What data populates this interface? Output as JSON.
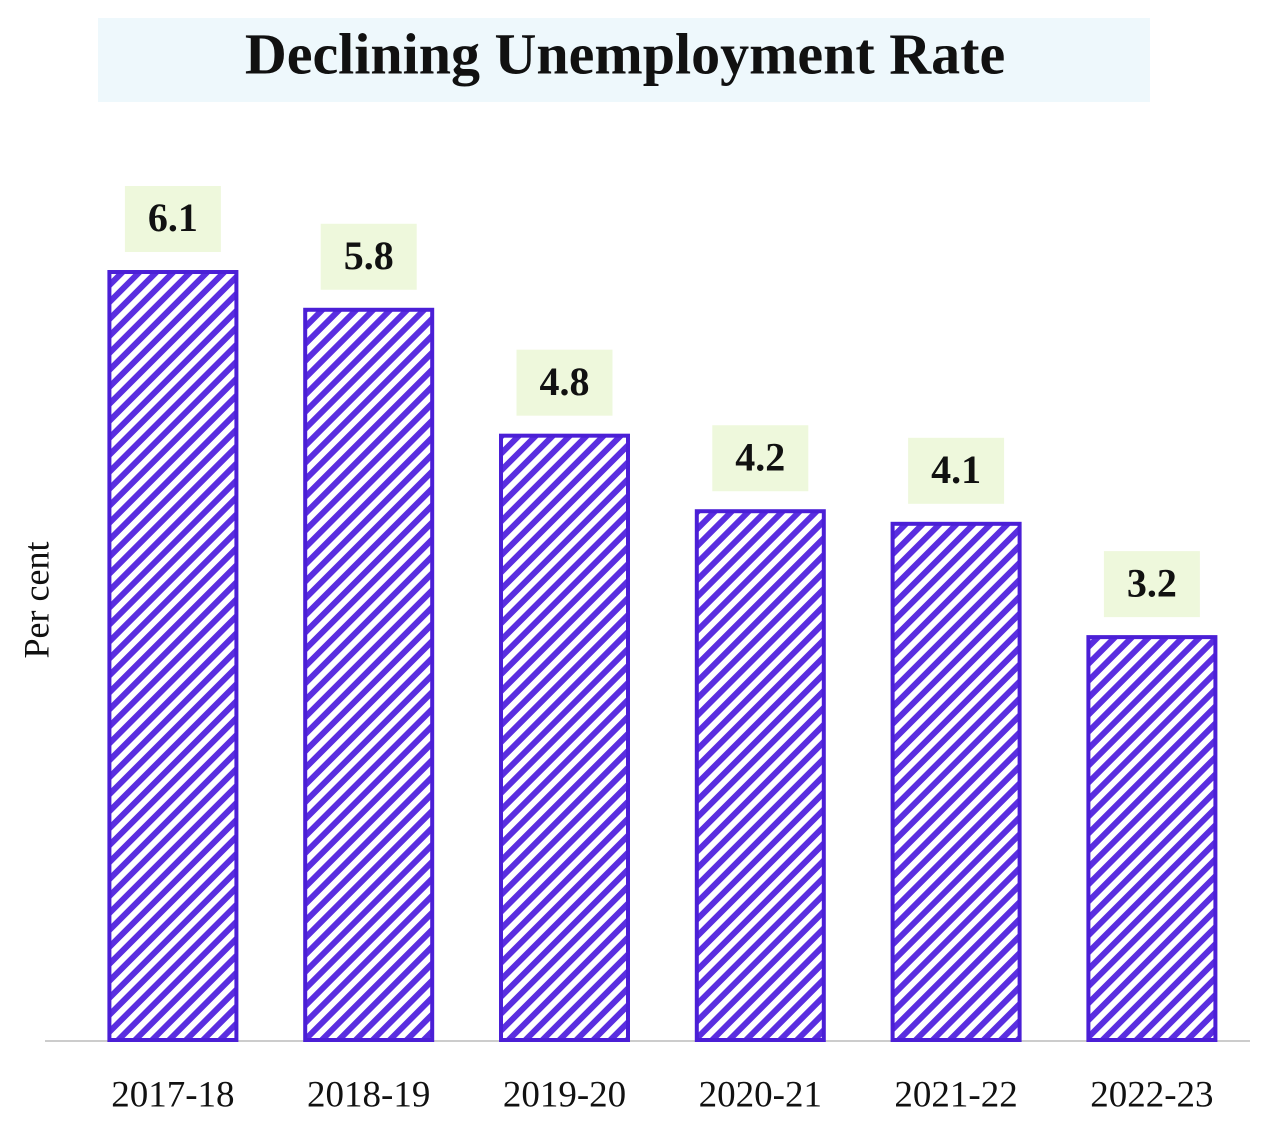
{
  "chart_data": {
    "type": "bar",
    "title": "Declining Unemployment Rate",
    "y_label": "Per cent",
    "categories": [
      "2017-18",
      "2018-19",
      "2019-20",
      "2020-21",
      "2021-22",
      "2022-23"
    ],
    "values": [
      6.1,
      5.8,
      4.8,
      4.2,
      4.1,
      3.2
    ],
    "color": "#4b1fd6"
  }
}
